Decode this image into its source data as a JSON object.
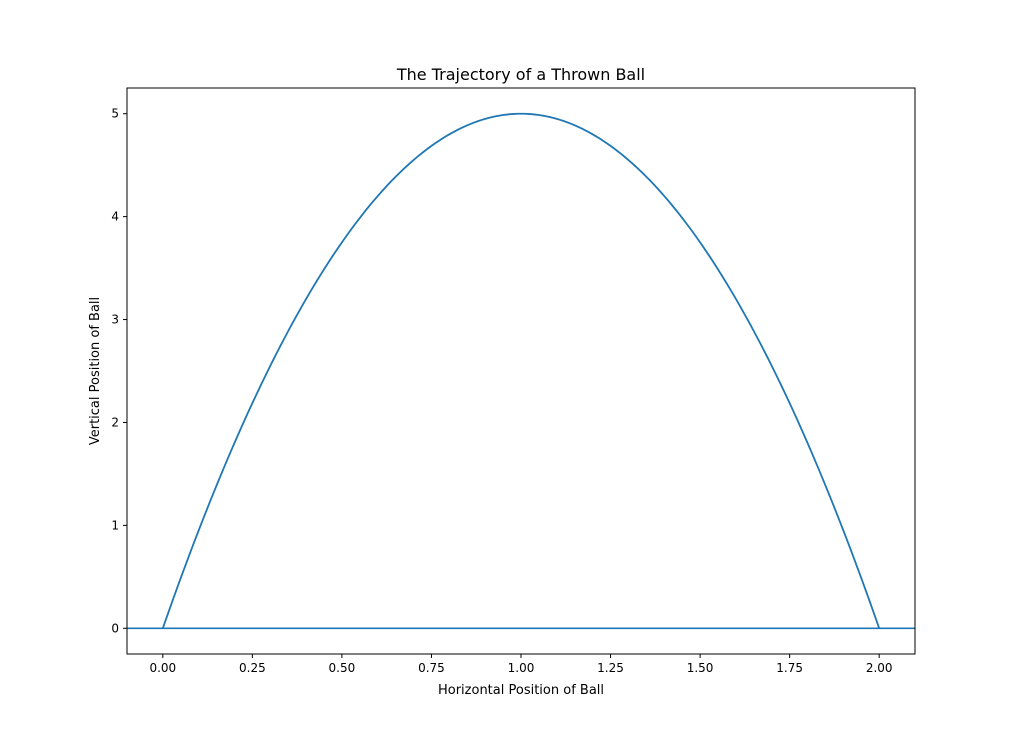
{
  "chart_data": {
    "type": "line",
    "title": "The Trajectory of a Thrown Ball",
    "xlabel": "Horizontal Position of Ball",
    "ylabel": "Vertical Position of Ball",
    "xlim": [
      -0.1,
      2.1
    ],
    "ylim": [
      -0.25,
      5.25
    ],
    "xticks": [
      0.0,
      0.25,
      0.5,
      0.75,
      1.0,
      1.25,
      1.5,
      1.75,
      2.0
    ],
    "xtick_labels": [
      "0.00",
      "0.25",
      "0.50",
      "0.75",
      "1.00",
      "1.25",
      "1.50",
      "1.75",
      "2.00"
    ],
    "yticks": [
      0,
      1,
      2,
      3,
      4,
      5
    ],
    "ytick_labels": [
      "0",
      "1",
      "2",
      "3",
      "4",
      "5"
    ],
    "grid": false,
    "series": [
      {
        "x": [
          0.0,
          0.1,
          0.2,
          0.3,
          0.4,
          0.5,
          0.6,
          0.7,
          0.8,
          0.9,
          1.0,
          1.1,
          1.2,
          1.3,
          1.4,
          1.5,
          1.6,
          1.7,
          1.8,
          1.9,
          2.0
        ],
        "values": [
          0.0,
          0.95,
          1.8,
          2.55,
          3.2,
          3.75,
          4.2,
          4.55,
          4.8,
          4.95,
          5.0,
          4.95,
          4.8,
          4.55,
          4.2,
          3.75,
          3.2,
          2.55,
          1.8,
          0.95,
          0.0
        ],
        "color": "#1f77b4"
      }
    ],
    "hlines": [
      {
        "y": 0,
        "color": "#1f77b4"
      }
    ]
  }
}
